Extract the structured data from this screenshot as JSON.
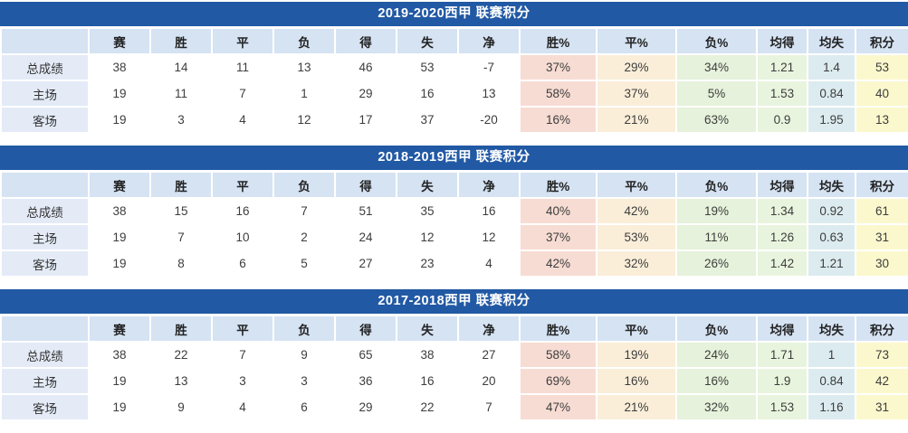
{
  "colors": {
    "title_bar": "#2159A4",
    "header_row": "#D5E3F3",
    "row_label": "#E4EBF7",
    "win_pct_col": "#F7DCD3",
    "draw_pct_col": "#FAEED9",
    "loss_pct_col": "#E6F2DB",
    "avg_for_col": "#E9F4DE",
    "avg_against_col": "#DCEBEF",
    "points_col": "#FBF8CD"
  },
  "columns": [
    "",
    "赛",
    "胜",
    "平",
    "负",
    "得",
    "失",
    "净",
    "胜%",
    "平%",
    "负%",
    "均得",
    "均失",
    "积分"
  ],
  "tables": [
    {
      "title": "2019-2020西甲 联赛积分",
      "rows": [
        {
          "label": "总成绩",
          "values": [
            "38",
            "14",
            "11",
            "13",
            "46",
            "53",
            "-7",
            "37%",
            "29%",
            "34%",
            "1.21",
            "1.4",
            "53"
          ]
        },
        {
          "label": "主场",
          "values": [
            "19",
            "11",
            "7",
            "1",
            "29",
            "16",
            "13",
            "58%",
            "37%",
            "5%",
            "1.53",
            "0.84",
            "40"
          ]
        },
        {
          "label": "客场",
          "values": [
            "19",
            "3",
            "4",
            "12",
            "17",
            "37",
            "-20",
            "16%",
            "21%",
            "63%",
            "0.9",
            "1.95",
            "13"
          ]
        }
      ]
    },
    {
      "title": "2018-2019西甲 联赛积分",
      "rows": [
        {
          "label": "总成绩",
          "values": [
            "38",
            "15",
            "16",
            "7",
            "51",
            "35",
            "16",
            "40%",
            "42%",
            "19%",
            "1.34",
            "0.92",
            "61"
          ]
        },
        {
          "label": "主场",
          "values": [
            "19",
            "7",
            "10",
            "2",
            "24",
            "12",
            "12",
            "37%",
            "53%",
            "11%",
            "1.26",
            "0.63",
            "31"
          ]
        },
        {
          "label": "客场",
          "values": [
            "19",
            "8",
            "6",
            "5",
            "27",
            "23",
            "4",
            "42%",
            "32%",
            "26%",
            "1.42",
            "1.21",
            "30"
          ]
        }
      ]
    },
    {
      "title": "2017-2018西甲 联赛积分",
      "rows": [
        {
          "label": "总成绩",
          "values": [
            "38",
            "22",
            "7",
            "9",
            "65",
            "38",
            "27",
            "58%",
            "19%",
            "24%",
            "1.71",
            "1",
            "73"
          ]
        },
        {
          "label": "主场",
          "values": [
            "19",
            "13",
            "3",
            "3",
            "36",
            "16",
            "20",
            "69%",
            "16%",
            "16%",
            "1.9",
            "0.84",
            "42"
          ]
        },
        {
          "label": "客场",
          "values": [
            "19",
            "9",
            "4",
            "6",
            "29",
            "22",
            "7",
            "47%",
            "21%",
            "32%",
            "1.53",
            "1.16",
            "31"
          ]
        }
      ]
    }
  ]
}
